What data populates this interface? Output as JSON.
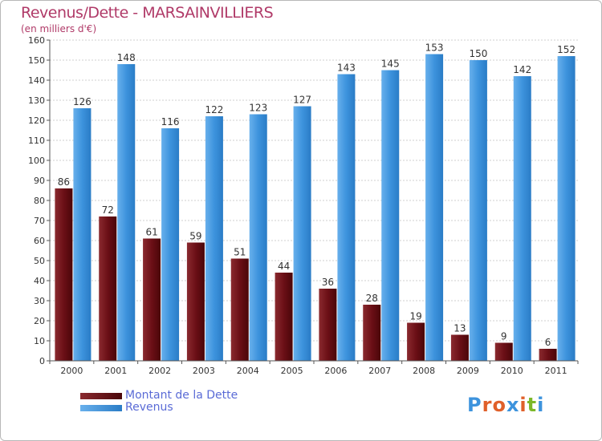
{
  "header": {
    "title": "Revenus/Dette - MARSAINVILLIERS",
    "subtitle": "(en milliers d'€)"
  },
  "legend": {
    "items": [
      {
        "label": "Montant de la Dette",
        "color": "#6b0f16"
      },
      {
        "label": "Revenus",
        "color": "#3d93dd"
      }
    ]
  },
  "logo": {
    "text": "Proxiti",
    "colors": [
      "#3d93dd",
      "#e0602a",
      "#e0602a",
      "#3d93dd",
      "#e0602a",
      "#7cb82a",
      "#3d93dd"
    ]
  },
  "colors": {
    "dette": "#6b0f16",
    "revenus": "#3d93dd",
    "title": "#b03a68",
    "legend_text": "#5a6bd6",
    "grid": "#cccccc"
  },
  "chart_data": {
    "type": "bar",
    "categories": [
      "2000",
      "2001",
      "2002",
      "2003",
      "2004",
      "2005",
      "2006",
      "2007",
      "2008",
      "2009",
      "2010",
      "2011"
    ],
    "series": [
      {
        "name": "Montant de la Dette",
        "values": [
          86,
          72,
          61,
          59,
          51,
          44,
          36,
          28,
          19,
          13,
          9,
          6
        ]
      },
      {
        "name": "Revenus",
        "values": [
          126,
          148,
          116,
          122,
          123,
          127,
          143,
          145,
          153,
          150,
          142,
          152
        ]
      }
    ],
    "title": "Revenus/Dette - MARSAINVILLIERS",
    "ylabel": "(en milliers d'€)",
    "ylim": [
      0,
      160
    ],
    "ytick_step": 10,
    "grid": true,
    "legend_position": "bottom-left"
  }
}
